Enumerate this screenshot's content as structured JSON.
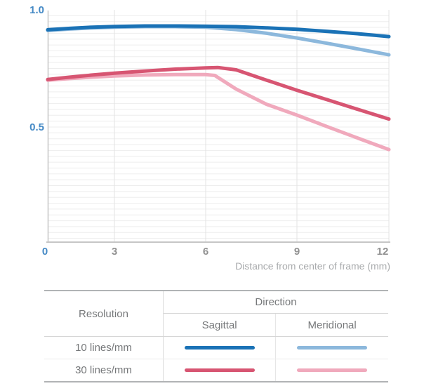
{
  "chart_data": {
    "type": "line",
    "title": "",
    "xlabel": "Distance from center of frame (mm)",
    "ylabel": "",
    "xlim": [
      0,
      12
    ],
    "ylim": [
      0,
      1.0
    ],
    "x_ticks": [
      {
        "label": "0",
        "value": 0,
        "highlight": true
      },
      {
        "label": "3",
        "value": 3,
        "highlight": false
      },
      {
        "label": "6",
        "value": 6,
        "highlight": false
      },
      {
        "label": "9",
        "value": 9,
        "highlight": false
      },
      {
        "label": "12",
        "value": 12,
        "highlight": false
      }
    ],
    "y_ticks": [
      {
        "label": "1.0",
        "value": 1.0
      },
      {
        "label": "0.5",
        "value": 0.5
      }
    ],
    "grid": {
      "minor_y_step": 0.025,
      "vertical_at": [
        3,
        6,
        9,
        12
      ],
      "on": true
    },
    "legend_position": "table-below-chart",
    "colors": {
      "tick_highlight": "#4489c5",
      "tick_normal": "#919191",
      "axis_title": "#a9abad",
      "minor_grid": "#ededed",
      "major_grid": "#e3e3e3",
      "spine": "#c6c6c6"
    },
    "series": [
      {
        "name": "30 lines/mm Meridional",
        "color": "#f0a9bc",
        "x": [
          0,
          1,
          2,
          3,
          4,
          5,
          6,
          6.3,
          7,
          8,
          9,
          10,
          11,
          12
        ],
        "y": [
          0.7,
          0.707,
          0.713,
          0.718,
          0.722,
          0.724,
          0.724,
          0.72,
          0.662,
          0.597,
          0.551,
          0.501,
          0.452,
          0.404
        ]
      },
      {
        "name": "30 lines/mm Sagittal",
        "color": "#d75572",
        "x": [
          0,
          1,
          2,
          3,
          4,
          5,
          6,
          6.4,
          7,
          8,
          9,
          10,
          11,
          12
        ],
        "y": [
          0.703,
          0.713,
          0.722,
          0.73,
          0.739,
          0.747,
          0.752,
          0.754,
          0.744,
          0.7,
          0.657,
          0.616,
          0.575,
          0.534
        ]
      },
      {
        "name": "10 lines/mm Meridional",
        "color": "#8cb8dc",
        "x": [
          0,
          1,
          2,
          3,
          4,
          5,
          6,
          7,
          8,
          9,
          10,
          11,
          12
        ],
        "y": [
          0.912,
          0.918,
          0.923,
          0.926,
          0.928,
          0.928,
          0.926,
          0.916,
          0.9,
          0.88,
          0.857,
          0.833,
          0.808
        ]
      },
      {
        "name": "10 lines/mm Sagittal",
        "color": "#1a72b6",
        "x": [
          0,
          1,
          2,
          3,
          4,
          5,
          6,
          7,
          8,
          9,
          10,
          11,
          12
        ],
        "y": [
          0.915,
          0.921,
          0.926,
          0.929,
          0.931,
          0.931,
          0.93,
          0.928,
          0.923,
          0.917,
          0.908,
          0.898,
          0.886
        ]
      }
    ]
  },
  "legend_table": {
    "resolution_header": "Resolution",
    "direction_header": "Direction",
    "columns": [
      "Sagittal",
      "Meridional"
    ],
    "rows": [
      {
        "label": "10 lines/mm",
        "sagittal_color": "#1a72b6",
        "meridional_color": "#8cb8dc"
      },
      {
        "label": "30 lines/mm",
        "sagittal_color": "#d75572",
        "meridional_color": "#f0a9bc"
      }
    ]
  }
}
